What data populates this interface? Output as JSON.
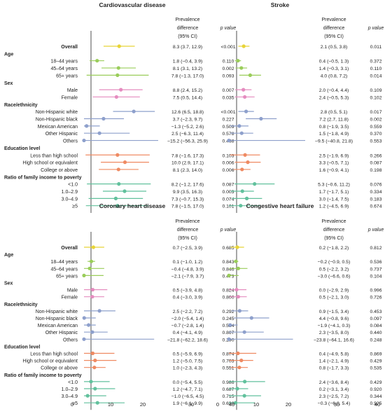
{
  "colors": {
    "overall": "#e8d437",
    "age": "#9acd5a",
    "sex": "#e58cbf",
    "race": "#8ea0cc",
    "education": "#ef8a62",
    "income": "#62c19d"
  },
  "headers": {
    "prevalence_difference": "Prevalence",
    "prevalence_difference_2": "difference",
    "prevalence_difference_3": "(95% CI)",
    "p_value": "p value"
  },
  "rows": [
    {
      "label": "Overall",
      "type": "row",
      "group": "overall",
      "bold": true
    },
    {
      "label": "Age",
      "type": "header"
    },
    {
      "label": "18–44 years",
      "type": "row",
      "group": "age"
    },
    {
      "label": "45–64 years",
      "type": "row",
      "group": "age"
    },
    {
      "label": "65+ years",
      "type": "row",
      "group": "age"
    },
    {
      "label": "Sex",
      "type": "header"
    },
    {
      "label": "Male",
      "type": "row",
      "group": "sex"
    },
    {
      "label": "Female",
      "type": "row",
      "group": "sex"
    },
    {
      "label": "Race/ethnicity",
      "type": "header"
    },
    {
      "label": "Non-Hispanic white",
      "type": "row",
      "group": "race"
    },
    {
      "label": "Non-Hispanic black",
      "type": "row",
      "group": "race"
    },
    {
      "label": "Mexican American",
      "type": "row",
      "group": "race"
    },
    {
      "label": "Other Hispanic",
      "type": "row",
      "group": "race"
    },
    {
      "label": "Others",
      "type": "row",
      "group": "race"
    },
    {
      "label": "Education level",
      "type": "header"
    },
    {
      "label": "Less than high school",
      "type": "row",
      "group": "education"
    },
    {
      "label": "High school or equivalent",
      "type": "row",
      "group": "education"
    },
    {
      "label": "College or above",
      "type": "row",
      "group": "education"
    },
    {
      "label": "Ratio of family income to poverty",
      "type": "header"
    },
    {
      "label": "<1.0",
      "type": "row",
      "group": "income"
    },
    {
      "label": "1.0–2.9",
      "type": "row",
      "group": "income"
    },
    {
      "label": "3.0–4.9",
      "type": "row",
      "group": "income"
    },
    {
      "label": "≥5",
      "type": "row",
      "group": "income"
    }
  ],
  "chart_data": [
    {
      "type": "forest",
      "title": "Cardiovascular disease",
      "xlim": [
        -5,
        20
      ],
      "xticks": [
        0,
        10,
        20
      ],
      "estimates": [
        8.3,
        1.8,
        8.1,
        7.8,
        8.8,
        7.5,
        12.6,
        3.7,
        -1.3,
        2.5,
        -15.2,
        7.8,
        10.0,
        8.1,
        8.2,
        9.9,
        7.3,
        7.8
      ],
      "lower": [
        3.7,
        -0.4,
        3.1,
        -1.3,
        2.4,
        0.5,
        6.5,
        -2.3,
        -5.2,
        -6.3,
        -56.3,
        -1.6,
        2.9,
        2.3,
        -1.2,
        3.5,
        -0.7,
        -1.5
      ],
      "upper": [
        12.9,
        3.9,
        13.2,
        17.0,
        15.2,
        14.4,
        18.8,
        9.7,
        2.6,
        11.4,
        25.9,
        17.3,
        17.1,
        14.0,
        17.6,
        16.3,
        15.3,
        17.0
      ],
      "ci_text": [
        "8.3 (3.7, 12.9)",
        "1.8 (−0.4, 3.9)",
        "8.1 (3.1, 13.2)",
        "7.8 (−1.3, 17.0)",
        "8.8 (2.4, 15.2)",
        "7.5 (0.5, 14.4)",
        "12.6 (6.5, 18.8)",
        "3.7 (−2.3, 9.7)",
        "−1.3 (−5.2, 2.6)",
        "2.5 (−6.3, 11.4)",
        "−15.2 (−56.3, 25.9)",
        "7.8 (−1.6, 17.3)",
        "10.0 (2.9, 17.1)",
        "8.1 (2.3, 14.0)",
        "8.2 (−1.2, 17.6)",
        "9.9 (3.5, 16.3)",
        "7.3 (−0.7, 15.3)",
        "7.8 (−1.5, 17.0)"
      ],
      "p": [
        "<0.001",
        "0.110",
        "0.002",
        "0.093",
        "0.007",
        "0.035",
        "<0.001",
        "0.227",
        "0.509",
        "0.578",
        "0.468",
        "0.103",
        "0.006",
        "0.006",
        "0.087",
        "0.003",
        "0.074",
        "0.101"
      ]
    },
    {
      "type": "forest",
      "title": "Stroke",
      "xlim": [
        -5,
        20
      ],
      "xticks": [
        0,
        10,
        20
      ],
      "estimates": [
        2.1,
        0.4,
        1.4,
        4.0,
        2.0,
        2.4,
        2.8,
        7.2,
        0.8,
        1.5,
        -9.5,
        2.5,
        3.3,
        1.6,
        5.3,
        1.7,
        3.0,
        1.2
      ],
      "lower": [
        0.5,
        -0.5,
        -0.3,
        0.8,
        -0.4,
        -0.5,
        0.5,
        2.7,
        -1.9,
        -1.8,
        -40.8,
        -1.9,
        -0.5,
        -0.9,
        -0.6,
        -1.7,
        -1.4,
        -4.5
      ],
      "upper": [
        3.8,
        1.3,
        3.1,
        7.2,
        4.4,
        5.3,
        5.1,
        11.8,
        3.5,
        4.9,
        21.8,
        6.9,
        7.1,
        4.1,
        11.2,
        5.1,
        7.5,
        6.9
      ],
      "ci_text": [
        "2.1 (0.5, 3.8)",
        "0.4 (−0.5, 1.3)",
        "1.4 (−0.3, 3.1)",
        "4.0 (0.8, 7.2)",
        "2.0 (−0.4, 4.4)",
        "2.4 (−0.5, 5.3)",
        "2.8 (0.5, 5.1)",
        "7.2 (2.7, 11.8)",
        "0.8 (−1.9, 3.5)",
        "1.5 (−1.8, 4.9)",
        "−9.5 (−40.8, 21.8)",
        "2.5 (−1.9, 6.9)",
        "3.3 (−0.5, 7.1)",
        "1.6 (−0.9, 4.1)",
        "5.3 (−0.6, 11.2)",
        "1.7 (−1.7, 5.1)",
        "3.0 (−1.4, 7.5)",
        "1.2 (−4.5, 6.9)"
      ],
      "p": [
        "0.011",
        "0.372",
        "0.110",
        "0.014",
        "0.109",
        "0.102",
        "0.017",
        "0.002",
        "0.559",
        "0.370",
        "0.553",
        "0.266",
        "0.087",
        "0.198",
        "0.076",
        "0.334",
        "0.183",
        "0.674"
      ]
    },
    {
      "type": "forest",
      "title": "Coronary heart disease",
      "xlim": [
        -5,
        20
      ],
      "xticks": [
        0,
        10,
        20
      ],
      "estimates": [
        0.7,
        0.1,
        -0.4,
        -2.1,
        0.5,
        0.4,
        2.5,
        -2.0,
        -0.7,
        0.4,
        -21.8,
        0.5,
        1.2,
        1.0,
        0.0,
        1.2,
        -1.0,
        1.9
      ],
      "lower": [
        -2.5,
        -1.0,
        -4.8,
        -7.9,
        -3.9,
        -3.0,
        -2.2,
        -5.4,
        -2.8,
        -4.1,
        -62.2,
        -5.9,
        -5.0,
        -2.3,
        -5.4,
        -4.7,
        -6.5,
        -6.1
      ],
      "upper": [
        3.9,
        1.2,
        3.9,
        3.7,
        4.8,
        3.9,
        7.2,
        1.4,
        1.4,
        4.9,
        18.6,
        6.9,
        7.5,
        4.3,
        5.5,
        7.1,
        4.5,
        9.9
      ],
      "ci_text": [
        "0.7 (−2.5, 3.9)",
        "0.1 (−1.0, 1.2)",
        "−0.4 (−4.8, 3.9)",
        "−2.1 (−7.9, 3.7)",
        "0.5 (−3.9, 4.8)",
        "0.4 (−3.0, 3.9)",
        "2.5 (−2.2, 7.2)",
        "−2.0 (−5.4, 1.4)",
        "−0.7 (−2.8, 1.4)",
        "0.4 (−4.1, 4.9)",
        "−21.8 (−62.2, 18.6)",
        "0.5 (−5.9, 6.9)",
        "1.2 (−5.0, 7.5)",
        "1.0 (−2.3, 4.3)",
        "0.0 (−5.4, 5.5)",
        "1.2 (−4.7, 7.1)",
        "−1.0 (−6.5, 4.5)",
        "1.9 (−6.1, 9.9)"
      ],
      "p": [
        "0.685",
        "0.843",
        "0.846",
        "0.473",
        "0.824",
        "0.800",
        "0.292",
        "0.245",
        "0.534",
        "0.867",
        "0.290",
        "0.874",
        "0.703",
        "0.551",
        "0.986",
        "0.687",
        "0.715",
        "0.636"
      ]
    },
    {
      "type": "forest",
      "title": "Congestive heart failure",
      "xlim": [
        -5,
        20
      ],
      "xticks": [
        0,
        10,
        20
      ],
      "estimates": [
        0.2,
        -0.2,
        0.5,
        -3.0,
        0.0,
        0.5,
        0.9,
        4.4,
        -1.9,
        2.3,
        -23.8,
        0.4,
        1.4,
        0.8,
        2.4,
        0.2,
        2.3,
        -0.3
      ],
      "lower": [
        -1.8,
        -0.9,
        -2.2,
        -6.6,
        -2.9,
        -2.1,
        -1.5,
        -0.8,
        -4.1,
        -3.5,
        -64.1,
        -4.9,
        -2.1,
        -1.7,
        -3.6,
        -3.1,
        -2.5,
        -6.0
      ],
      "upper": [
        2.2,
        0.5,
        3.2,
        0.6,
        2.9,
        3.0,
        3.4,
        9.6,
        0.3,
        8.0,
        16.6,
        5.8,
        4.9,
        3.3,
        8.4,
        3.4,
        7.2,
        5.4
      ],
      "ci_text": [
        "0.2 (−1.8, 2.2)",
        "−0.2 (−0.9, 0.5)",
        "0.5 (−2.2, 3.2)",
        "−3.0 (−6.6, 0.6)",
        "0.0 (−2.9, 2.9)",
        "0.5 (−2.1, 3.0)",
        "0.9 (−1.5, 3.4)",
        "4.4 (−0.8, 9.6)",
        "−1.9 (−4.1, 0.3)",
        "2.3 (−3.5, 8.0)",
        "−23.8 (−64.1, 16.6)",
        "0.4 (−4.9, 5.8)",
        "1.4 (−2.1, 4.9)",
        "0.8 (−1.7, 3.3)",
        "2.4 (−3.6, 8.4)",
        "0.2 (−3.1, 3.4)",
        "2.3 (−2.5, 7.2)",
        "−0.3 (−6.0, 5.4)"
      ],
      "p": [
        "0.812",
        "0.536",
        "0.737",
        "0.104",
        "0.996",
        "0.726",
        "0.453",
        "0.097",
        "0.084",
        "0.440",
        "0.248",
        "0.869",
        "0.429",
        "0.535",
        "0.429",
        "0.920",
        "0.344",
        "0.925"
      ]
    }
  ],
  "bottom_axis": {
    "ticks_left": [
      "0",
      "10",
      "20",
      "30",
      "40"
    ],
    "ticks_right": [
      "0",
      "10",
      "20",
      "30",
      "40"
    ]
  }
}
